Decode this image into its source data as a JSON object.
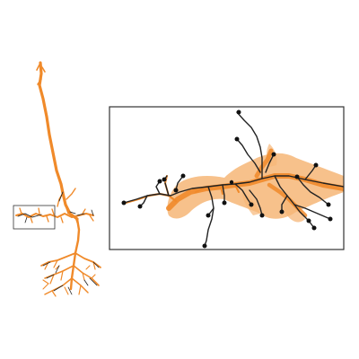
{
  "figure": {
    "subject": "neuron-reconstruction",
    "colors": {
      "background": "#ffffff",
      "neuron": "#f08a2a",
      "neuron_light": "#f6b677",
      "skeleton": "#222222",
      "node": "#111111",
      "frame": "#333333"
    },
    "panels": [
      {
        "id": "overview",
        "icon": "full-neuron-morphology"
      },
      {
        "id": "zoom-inset",
        "icon": "magnified-dendrite-segment"
      }
    ]
  }
}
